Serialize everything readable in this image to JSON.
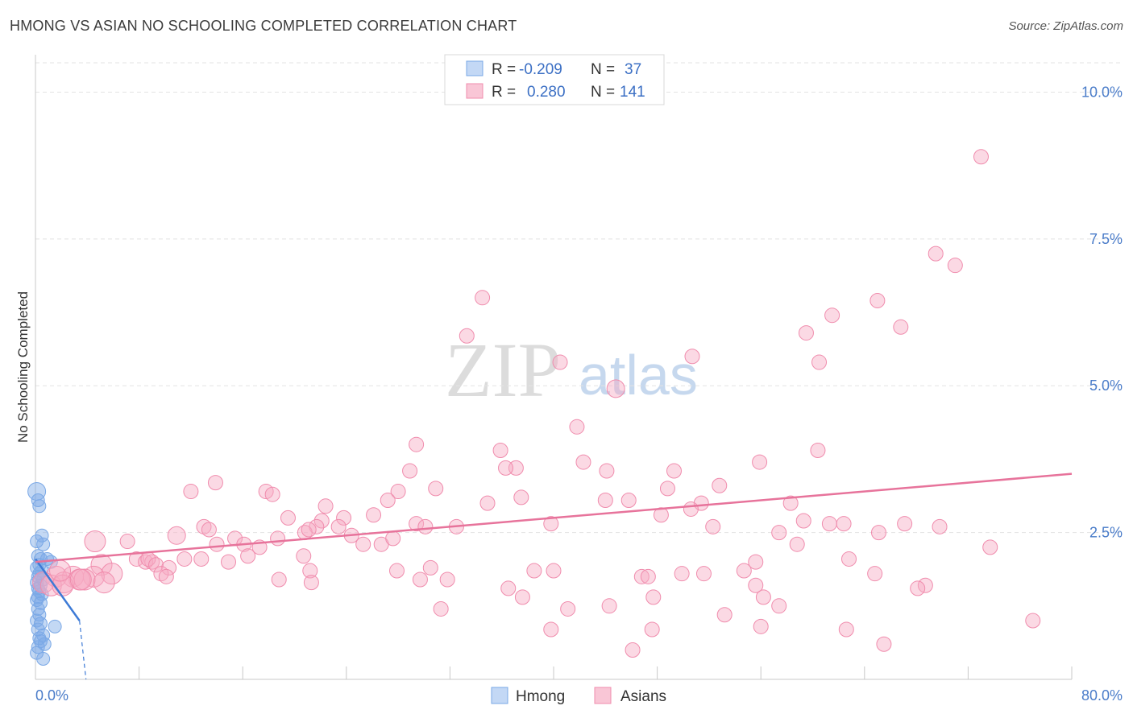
{
  "title": "HMONG VS ASIAN NO SCHOOLING COMPLETED CORRELATION CHART",
  "source": "Source: ZipAtlas.com",
  "watermark": {
    "a": "ZIP",
    "b": "atlas"
  },
  "legend": {
    "rows": [
      {
        "r_label": "R =",
        "r_value": "-0.209",
        "n_label": "N =",
        "n_value": "37",
        "color": "#7aa8e6"
      },
      {
        "r_label": "R =",
        "r_value": "0.280",
        "n_label": "N =",
        "n_value": "141",
        "color": "#f08cad"
      }
    ]
  },
  "bottom_legend": [
    {
      "label": "Hmong",
      "color": "#7aa8e6"
    },
    {
      "label": "Asians",
      "color": "#f08cad"
    }
  ],
  "chart_data": {
    "type": "scatter",
    "title": "HMONG VS ASIAN NO SCHOOLING COMPLETED CORRELATION CHART",
    "xlabel": "",
    "ylabel": "No Schooling Completed",
    "xlim": [
      0,
      80
    ],
    "ylim": [
      0,
      10.5
    ],
    "x_tick_labels": [
      "0.0%",
      "80.0%"
    ],
    "y_ticks": [
      2.5,
      5.0,
      7.5,
      10.0
    ],
    "y_tick_labels": [
      "2.5%",
      "5.0%",
      "7.5%",
      "10.0%"
    ],
    "grid": true,
    "legend_position": "top-center",
    "series": [
      {
        "name": "Hmong",
        "color": "#7aa8e6",
        "trend": {
          "x": [
            0,
            3.4
          ],
          "y": [
            2.05,
            1.0
          ],
          "dashed_extension_to": [
            3.9,
            0
          ]
        },
        "points": [
          [
            0.1,
            3.2
          ],
          [
            0.2,
            3.05
          ],
          [
            0.3,
            2.95
          ],
          [
            0.5,
            2.45
          ],
          [
            0.6,
            2.3
          ],
          [
            0.1,
            2.35
          ],
          [
            0.2,
            2.1
          ],
          [
            0.4,
            2.05
          ],
          [
            0.9,
            2.05
          ],
          [
            1.2,
            2.0
          ],
          [
            0.3,
            1.95
          ],
          [
            0.1,
            1.9
          ],
          [
            0.5,
            1.85
          ],
          [
            0.3,
            1.8
          ],
          [
            0.2,
            1.75
          ],
          [
            0.6,
            1.7
          ],
          [
            0.1,
            1.65
          ],
          [
            0.4,
            1.6
          ],
          [
            0.2,
            1.55
          ],
          [
            0.3,
            1.5
          ],
          [
            0.5,
            1.45
          ],
          [
            0.2,
            1.4
          ],
          [
            0.1,
            1.35
          ],
          [
            0.4,
            1.3
          ],
          [
            0.2,
            1.2
          ],
          [
            0.3,
            1.1
          ],
          [
            0.1,
            1.0
          ],
          [
            0.4,
            0.95
          ],
          [
            1.5,
            0.9
          ],
          [
            0.2,
            0.85
          ],
          [
            0.6,
            0.75
          ],
          [
            0.3,
            0.7
          ],
          [
            0.7,
            0.6
          ],
          [
            0.2,
            0.55
          ],
          [
            0.6,
            0.35
          ],
          [
            0.1,
            0.45
          ],
          [
            0.4,
            0.65
          ]
        ]
      },
      {
        "name": "Asians",
        "color": "#f08cad",
        "trend": {
          "x": [
            0,
            80
          ],
          "y": [
            2.0,
            3.5
          ]
        },
        "points": [
          [
            73,
            8.9
          ],
          [
            69.5,
            7.25
          ],
          [
            71,
            7.05
          ],
          [
            34.5,
            6.5
          ],
          [
            65,
            6.45
          ],
          [
            61.5,
            6.2
          ],
          [
            66.8,
            6.0
          ],
          [
            59.5,
            5.9
          ],
          [
            33.3,
            5.85
          ],
          [
            50.7,
            5.5
          ],
          [
            60.5,
            5.4
          ],
          [
            40.5,
            5.4
          ],
          [
            44.8,
            4.95
          ],
          [
            41.8,
            4.3
          ],
          [
            29.4,
            4.0
          ],
          [
            35.9,
            3.9
          ],
          [
            60.4,
            3.9
          ],
          [
            42.3,
            3.7
          ],
          [
            55.9,
            3.7
          ],
          [
            37.1,
            3.6
          ],
          [
            36.3,
            3.6
          ],
          [
            28.9,
            3.55
          ],
          [
            49.3,
            3.55
          ],
          [
            44.1,
            3.55
          ],
          [
            13.9,
            3.35
          ],
          [
            52.8,
            3.3
          ],
          [
            30.9,
            3.25
          ],
          [
            12,
            3.2
          ],
          [
            17.8,
            3.2
          ],
          [
            28,
            3.2
          ],
          [
            18.3,
            3.15
          ],
          [
            48.8,
            3.25
          ],
          [
            37.5,
            3.1
          ],
          [
            27.2,
            3.05
          ],
          [
            44,
            3.05
          ],
          [
            45.8,
            3.05
          ],
          [
            34.9,
            3.0
          ],
          [
            51.4,
            3.0
          ],
          [
            58.3,
            3.0
          ],
          [
            22.4,
            2.95
          ],
          [
            50.6,
            2.9
          ],
          [
            26.1,
            2.8
          ],
          [
            48.3,
            2.8
          ],
          [
            19.5,
            2.75
          ],
          [
            23.8,
            2.75
          ],
          [
            59.3,
            2.7
          ],
          [
            22.1,
            2.7
          ],
          [
            61.3,
            2.65
          ],
          [
            62.4,
            2.65
          ],
          [
            67.1,
            2.65
          ],
          [
            69.8,
            2.6
          ],
          [
            29.4,
            2.65
          ],
          [
            39.8,
            2.65
          ],
          [
            13,
            2.6
          ],
          [
            13.4,
            2.55
          ],
          [
            21.7,
            2.6
          ],
          [
            32.5,
            2.6
          ],
          [
            30.1,
            2.6
          ],
          [
            20.8,
            2.5
          ],
          [
            23.4,
            2.6
          ],
          [
            21.1,
            2.55
          ],
          [
            24.4,
            2.45
          ],
          [
            52.3,
            2.6
          ],
          [
            57.4,
            2.5
          ],
          [
            65.1,
            2.5
          ],
          [
            10.9,
            2.45
          ],
          [
            4.6,
            2.35
          ],
          [
            15.4,
            2.4
          ],
          [
            18.7,
            2.4
          ],
          [
            7.1,
            2.35
          ],
          [
            14,
            2.3
          ],
          [
            16.1,
            2.3
          ],
          [
            17.3,
            2.25
          ],
          [
            25.3,
            2.3
          ],
          [
            26.7,
            2.3
          ],
          [
            58.8,
            2.3
          ],
          [
            27.6,
            2.4
          ],
          [
            73.7,
            2.25
          ],
          [
            7.8,
            2.05
          ],
          [
            11.5,
            2.05
          ],
          [
            16.4,
            2.1
          ],
          [
            8.5,
            2.0
          ],
          [
            9,
            2.0
          ],
          [
            14.9,
            2.0
          ],
          [
            8.7,
            2.05
          ],
          [
            12.8,
            2.05
          ],
          [
            62.8,
            2.05
          ],
          [
            5.1,
            1.95
          ],
          [
            9.3,
            1.95
          ],
          [
            10.3,
            1.9
          ],
          [
            55.6,
            2.0
          ],
          [
            20.7,
            2.1
          ],
          [
            5.9,
            1.8
          ],
          [
            1.6,
            1.75
          ],
          [
            2.9,
            1.75
          ],
          [
            4.5,
            1.75
          ],
          [
            3.4,
            1.7
          ],
          [
            0.6,
            1.65
          ],
          [
            1.2,
            1.6
          ],
          [
            2.2,
            1.65
          ],
          [
            2.1,
            1.6
          ],
          [
            3.8,
            1.7
          ],
          [
            5.3,
            1.65
          ],
          [
            9.7,
            1.8
          ],
          [
            10.1,
            1.75
          ],
          [
            18.8,
            1.7
          ],
          [
            21.2,
            1.85
          ],
          [
            27.9,
            1.85
          ],
          [
            30.5,
            1.9
          ],
          [
            38.5,
            1.85
          ],
          [
            40,
            1.85
          ],
          [
            46.8,
            1.75
          ],
          [
            47.3,
            1.75
          ],
          [
            49.9,
            1.8
          ],
          [
            51.6,
            1.8
          ],
          [
            54.7,
            1.85
          ],
          [
            64.8,
            1.8
          ],
          [
            21.3,
            1.65
          ],
          [
            31.8,
            1.7
          ],
          [
            29.7,
            1.7
          ],
          [
            36.5,
            1.55
          ],
          [
            55.6,
            1.6
          ],
          [
            68.7,
            1.6
          ],
          [
            68.1,
            1.55
          ],
          [
            37.6,
            1.4
          ],
          [
            47.7,
            1.4
          ],
          [
            56.2,
            1.4
          ],
          [
            31.3,
            1.2
          ],
          [
            41.1,
            1.2
          ],
          [
            44.3,
            1.25
          ],
          [
            57.4,
            1.25
          ],
          [
            53.2,
            1.1
          ],
          [
            39.8,
            0.85
          ],
          [
            47.6,
            0.85
          ],
          [
            56,
            0.9
          ],
          [
            62.6,
            0.85
          ],
          [
            77,
            1.0
          ],
          [
            46.1,
            0.5
          ],
          [
            65.5,
            0.6
          ],
          [
            3.5,
            1.7
          ],
          [
            1.9,
            1.85
          ]
        ]
      }
    ]
  }
}
